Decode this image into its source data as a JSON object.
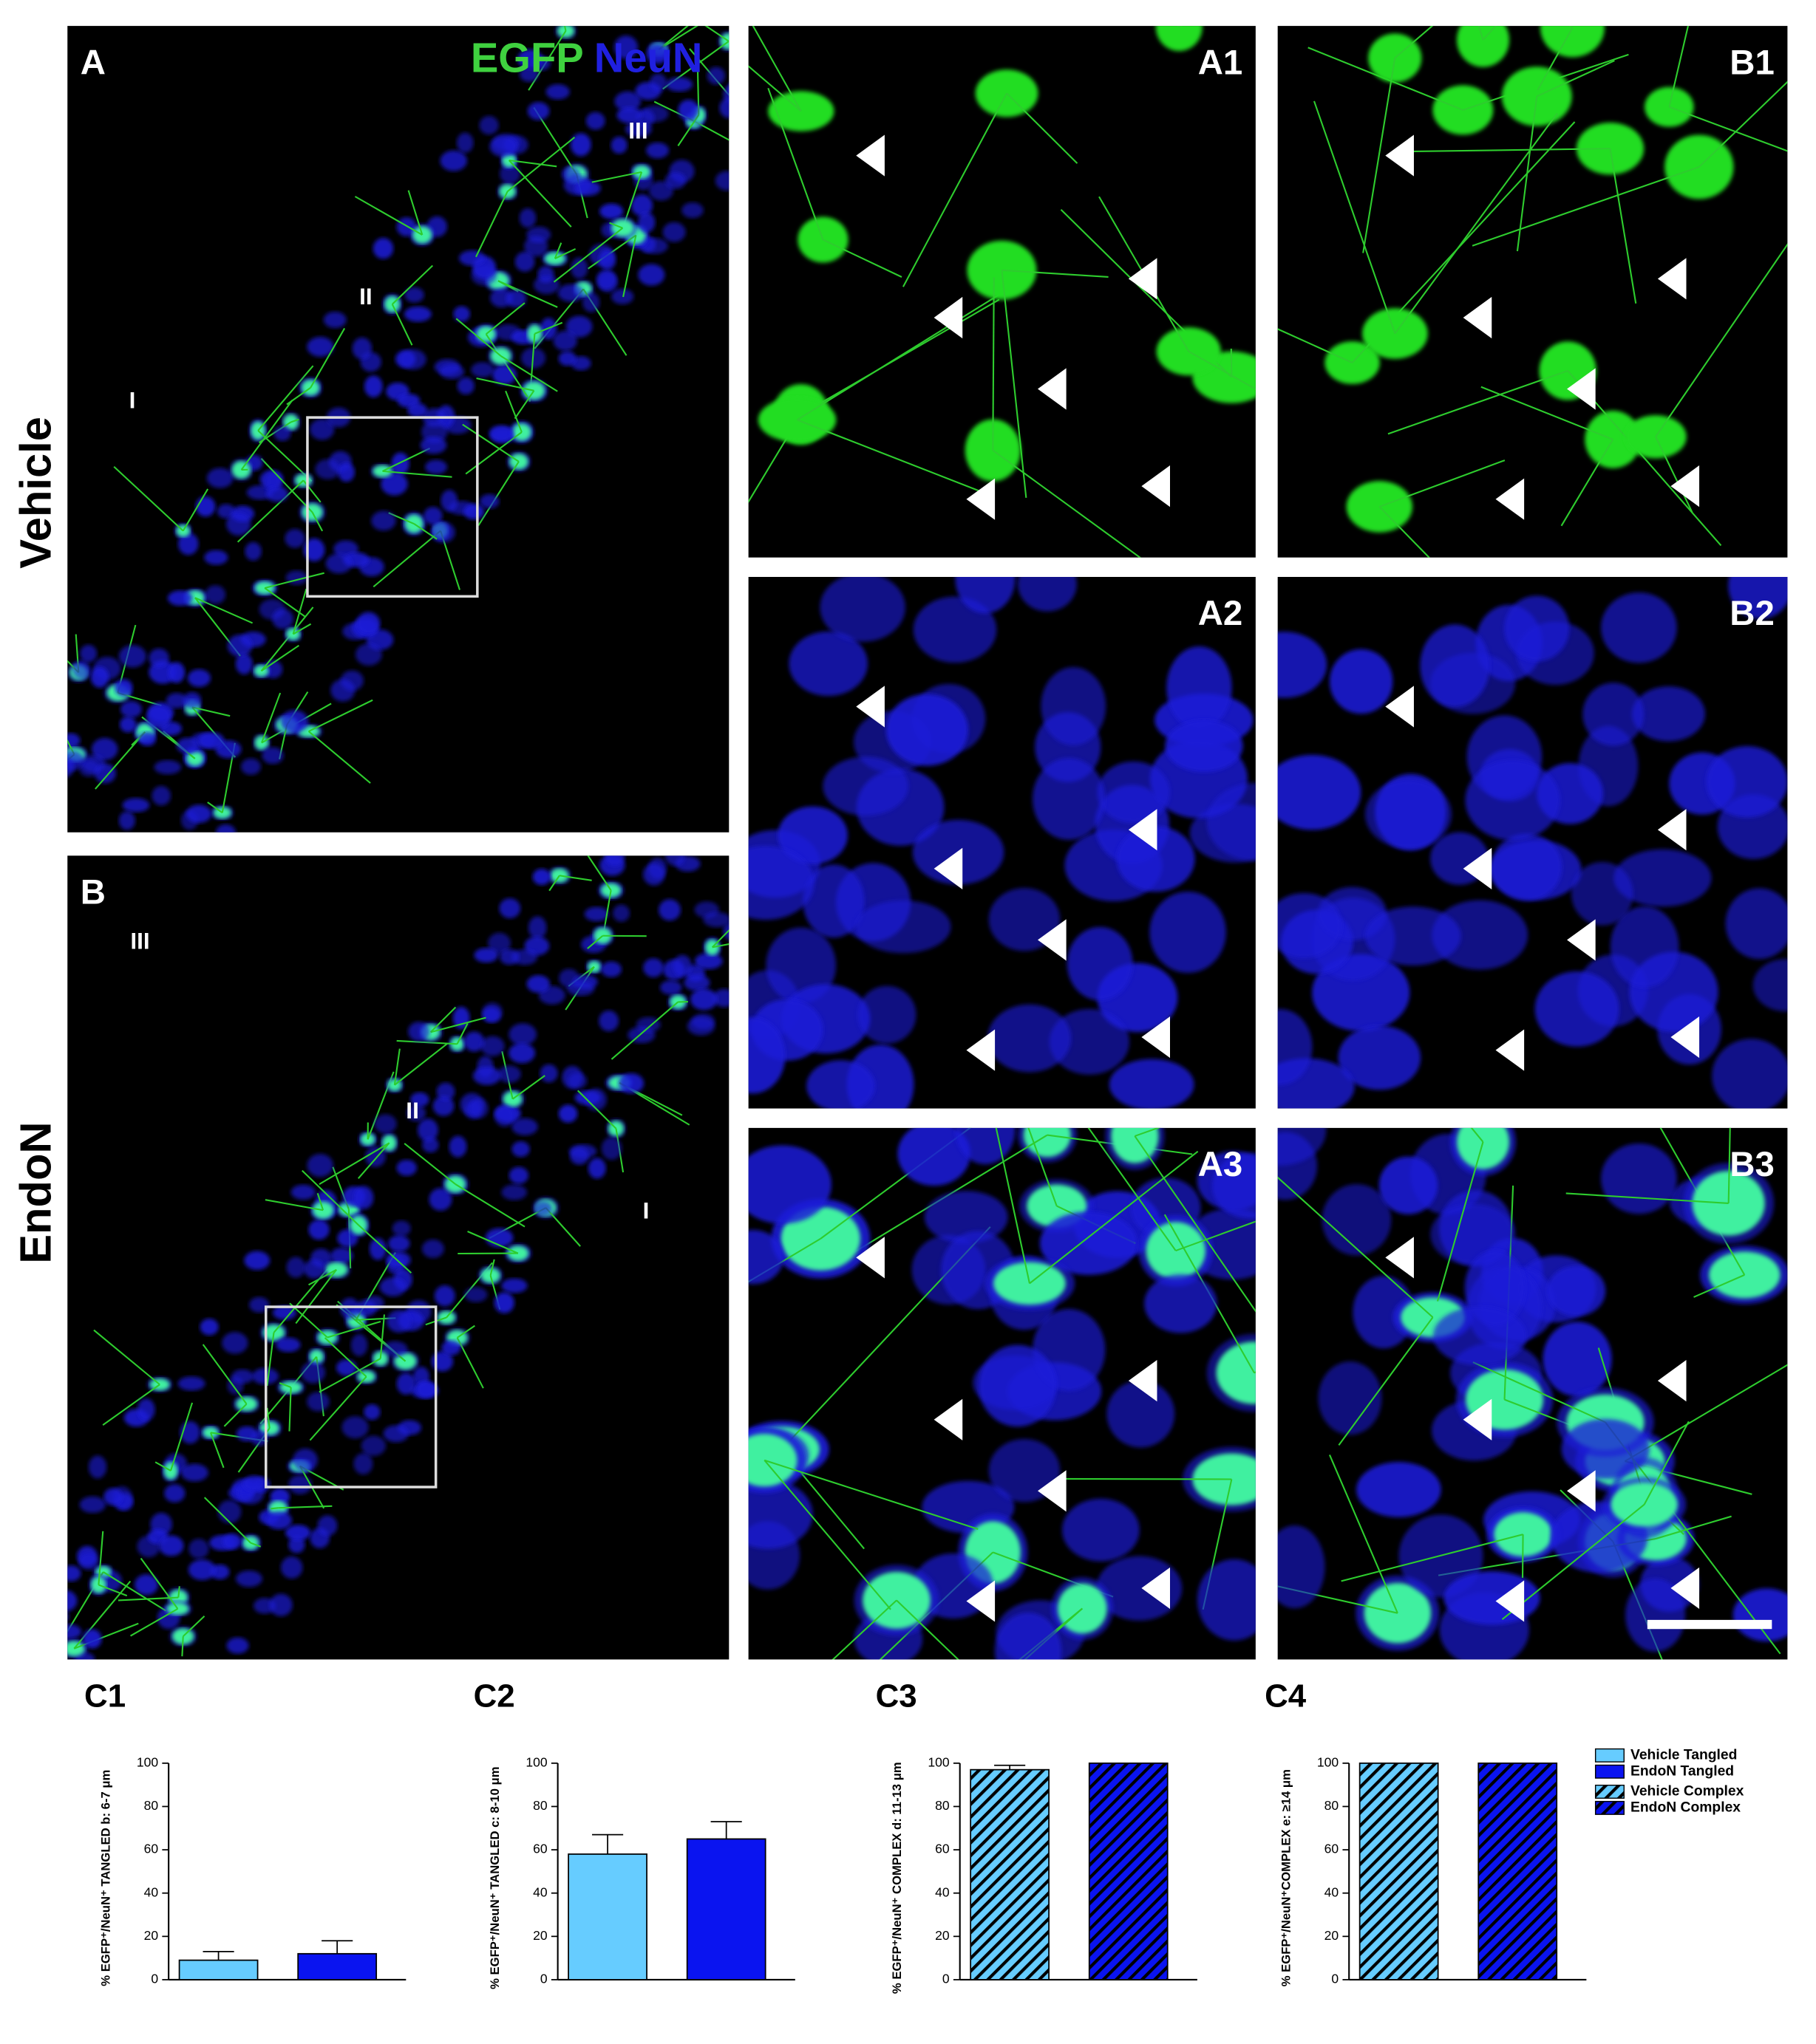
{
  "figure": {
    "row_labels": [
      "Vehicle",
      "EndoN"
    ],
    "channels": [
      "EGFP",
      "NeuN"
    ],
    "panel_labels": [
      "A",
      "B",
      "A1",
      "A2",
      "A3",
      "B1",
      "B2",
      "B3"
    ],
    "layers": {
      "A": [
        "I",
        "II",
        "III"
      ],
      "B": [
        "I",
        "II",
        "III"
      ]
    }
  },
  "chart_data": [
    {
      "type": "bar",
      "title": "C1",
      "y_label": "% EGFP⁺/NeuN⁺ TANGLED b: 6-7 μm",
      "categories": [
        null,
        null
      ],
      "values": [
        9,
        12
      ],
      "errors": [
        4,
        6
      ],
      "colors": [
        "#66ccff",
        "#0a14f0"
      ],
      "hatch": false,
      "ylim": [
        0,
        100
      ],
      "yticks": [
        0,
        20,
        40,
        60,
        80,
        100
      ]
    },
    {
      "type": "bar",
      "title": "C2",
      "y_label": "% EGFP⁺/NeuN⁺ TANGLED c: 8-10 μm",
      "categories": [
        null,
        null
      ],
      "values": [
        58,
        65
      ],
      "errors": [
        9,
        8
      ],
      "colors": [
        "#66ccff",
        "#0a14f0"
      ],
      "hatch": false,
      "ylim": [
        0,
        100
      ],
      "yticks": [
        0,
        20,
        40,
        60,
        80,
        100
      ]
    },
    {
      "type": "bar",
      "title": "C3",
      "y_label": "% EGFP⁺/NeuN⁺ COMPLEX  d: 11-13 μm",
      "categories": [
        null,
        null
      ],
      "values": [
        97,
        100
      ],
      "errors": [
        2,
        null
      ],
      "colors": [
        "#66ccff",
        "#0a14f0"
      ],
      "hatch": true,
      "ylim": [
        0,
        100
      ],
      "yticks": [
        0,
        20,
        40,
        60,
        80,
        100
      ]
    },
    {
      "type": "bar",
      "title": "C4",
      "y_label": "% EGFP⁺/NeuN⁺COMPLEX e: ≥14 μm",
      "categories": [
        null,
        null
      ],
      "values": [
        100,
        100
      ],
      "colors": [
        "#66ccff",
        "#0a14f0"
      ],
      "hatch": true,
      "ylim": [
        0,
        100
      ],
      "yticks": [
        0,
        20,
        40,
        60,
        80,
        100
      ],
      "legend": [
        {
          "label": "Vehicle Tangled",
          "color": "#66ccff",
          "hatch": false
        },
        {
          "label": "EndoN Tangled",
          "color": "#0a14f0",
          "hatch": false
        },
        {
          "label": "Vehicle Complex",
          "color": "#66ccff",
          "hatch": true
        },
        {
          "label": "EndoN Complex",
          "color": "#0a14f0",
          "hatch": true
        }
      ]
    }
  ]
}
